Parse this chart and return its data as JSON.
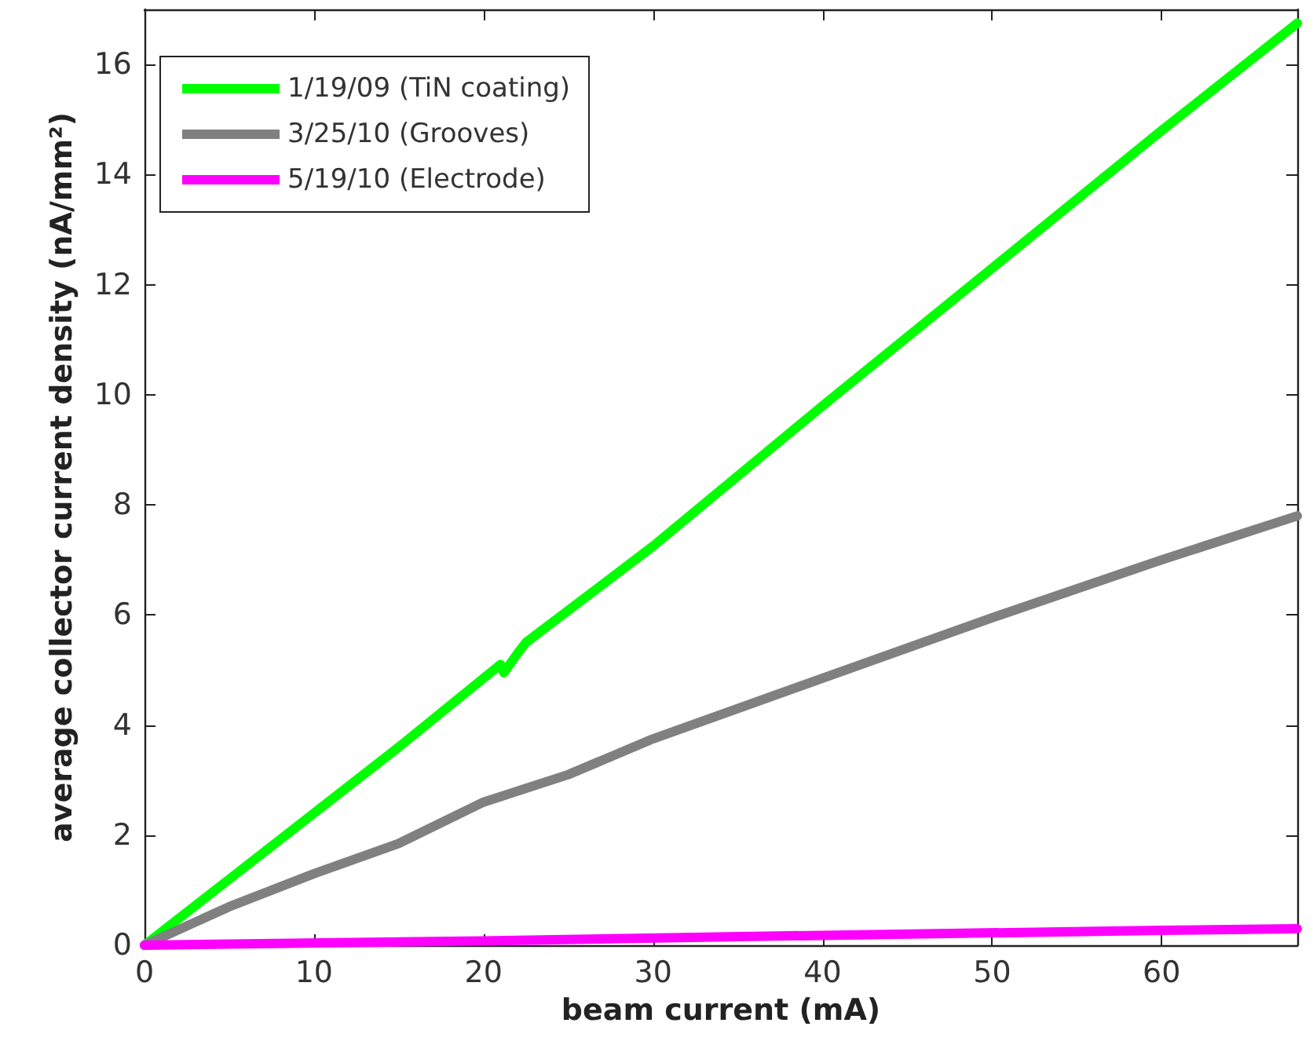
{
  "chart_data": {
    "type": "line",
    "xlabel": "beam current (mA)",
    "ylabel": "average collector current density (nA/mm²)",
    "xlim": [
      0,
      68
    ],
    "xticks": [
      0,
      10,
      20,
      30,
      40,
      50,
      60
    ],
    "ylim": [
      0,
      17
    ],
    "yticks": [
      0,
      2,
      4,
      6,
      8,
      10,
      12,
      14,
      16
    ],
    "grid": false,
    "legend": "top left",
    "marker": "none",
    "line_style": "solid",
    "series": [
      {
        "name": "1/19/09 (TiN coating)",
        "color": "#00ff00",
        "x": [
          0,
          5,
          10,
          15,
          20,
          21,
          21.2,
          22,
          22.5,
          30,
          40,
          50,
          60,
          68
        ],
        "values": [
          0,
          1.2,
          2.4,
          3.6,
          4.85,
          5.1,
          4.95,
          5.3,
          5.5,
          7.25,
          9.8,
          12.3,
          14.8,
          16.75
        ]
      },
      {
        "name": "3/25/10 (Grooves)",
        "color": "#808080",
        "x": [
          0,
          5,
          10,
          15,
          20,
          25,
          30,
          40,
          50,
          60,
          68
        ],
        "values": [
          0,
          0.7,
          1.3,
          1.85,
          2.6,
          3.1,
          3.75,
          4.85,
          5.95,
          7.0,
          7.8
        ]
      },
      {
        "name": "5/19/10 (Electrode)",
        "color": "#ff00ff",
        "x": [
          0,
          20,
          40,
          60,
          68
        ],
        "values": [
          0,
          0.08,
          0.18,
          0.27,
          0.3
        ]
      }
    ]
  }
}
